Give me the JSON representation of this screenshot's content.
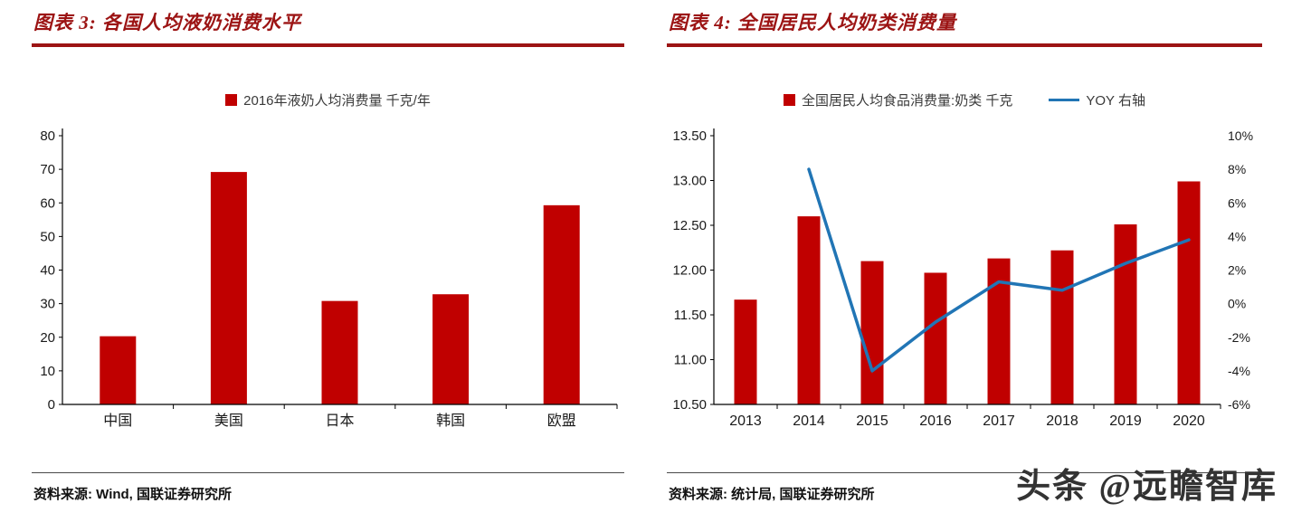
{
  "colors": {
    "bar": "#C00000",
    "line": "#2175B5",
    "title_red": "#9C1414",
    "axis": "#000000"
  },
  "watermark": "头条 @远瞻智库",
  "left_panel": {
    "title": "图表 3: 各国人均液奶消费水平",
    "legend": [
      {
        "label": "2016年液奶人均消费量 千克/年",
        "swatch": "bar"
      }
    ],
    "source": "资料来源: Wind, 国联证券研究所"
  },
  "right_panel": {
    "title": "图表 4: 全国居民人均奶类消费量",
    "legend": [
      {
        "label": "全国居民人均食品消费量:奶类 千克",
        "swatch": "bar"
      },
      {
        "label": "YOY 右轴",
        "swatch": "line"
      }
    ],
    "source": "资料来源: 统计局, 国联证券研究所"
  },
  "chart_data": [
    {
      "type": "bar",
      "title": "图表 3: 各国人均液奶消费水平",
      "legend": [
        "2016年液奶人均消费量 千克/年"
      ],
      "categories": [
        "中国",
        "美国",
        "日本",
        "韩国",
        "欧盟"
      ],
      "values": [
        20.3,
        69.2,
        30.8,
        32.8,
        59.3
      ],
      "xlabel": "",
      "ylabel": "",
      "ylim": [
        0,
        80
      ],
      "ytick_step": 10,
      "grid": false,
      "legend_position": "top"
    },
    {
      "type": "bar+line",
      "title": "图表 4: 全国居民人均奶类消费量",
      "categories": [
        "2013",
        "2014",
        "2015",
        "2016",
        "2017",
        "2018",
        "2019",
        "2020"
      ],
      "series": [
        {
          "name": "全国居民人均食品消费量:奶类 千克",
          "type": "bar",
          "axis": "left",
          "values": [
            11.67,
            12.6,
            12.1,
            11.97,
            12.13,
            12.22,
            12.51,
            12.99
          ]
        },
        {
          "name": "YOY 右轴",
          "type": "line",
          "axis": "right",
          "values": [
            null,
            8.0,
            -4.0,
            -1.1,
            1.3,
            0.8,
            2.4,
            3.8
          ]
        }
      ],
      "left_axis": {
        "min": 10.5,
        "max": 13.5,
        "tick_labels": [
          "13.50",
          "13.00",
          "12.50",
          "12.00",
          "11.50",
          "11.00",
          "10.50"
        ]
      },
      "right_axis": {
        "min": -6,
        "max": 10,
        "tick_labels": [
          "10%",
          "8%",
          "6%",
          "4%",
          "2%",
          "0%",
          "-2%",
          "-4%",
          "-6%"
        ]
      },
      "grid": false,
      "legend_position": "top"
    }
  ]
}
